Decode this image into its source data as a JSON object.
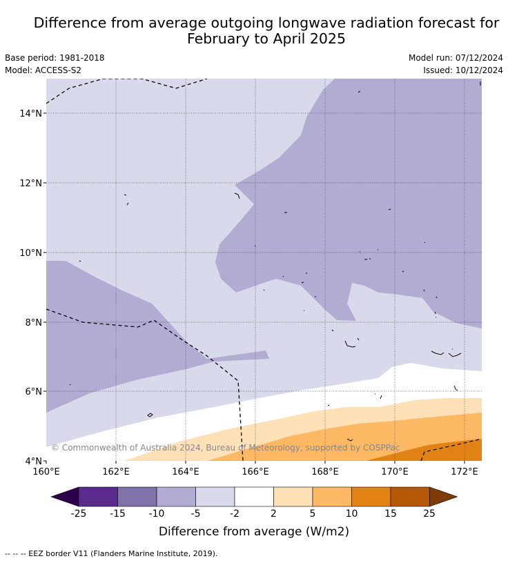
{
  "title_line1": "Difference from average outgoing longwave radiation forecast for",
  "title_line2": "February to April 2025",
  "base_period": "Base period: 1981-2018",
  "model": "Model: ACCESS-S2",
  "model_run": "Model run: 07/12/2024",
  "issued": "Issued: 10/12/2024",
  "copyright": "© Commonwealth of Australia 2024, Bureau of Meteorology, supported by COSPPac",
  "x_ticks": [
    "160°E",
    "162°E",
    "164°E",
    "166°E",
    "168°E",
    "170°E",
    "172°E"
  ],
  "y_ticks": [
    "14°N",
    "12°N",
    "10°N",
    "8°N",
    "6°N",
    "4°N"
  ],
  "colorbar": {
    "labels": [
      "-25",
      "-15",
      "-10",
      "-5",
      "-2",
      "2",
      "5",
      "10",
      "15",
      "25"
    ],
    "colors": [
      "#2d004b",
      "#5a2a8c",
      "#8073ac",
      "#b2abd2",
      "#d8daeb",
      "#ffffff",
      "#fee0b6",
      "#fdb863",
      "#e08214",
      "#b35806",
      "#7f3b08"
    ],
    "title": "Difference from average (W/m2)"
  },
  "footer": "-- -- -- EEZ border V11 (Flanders Marine Institute, 2019)."
}
